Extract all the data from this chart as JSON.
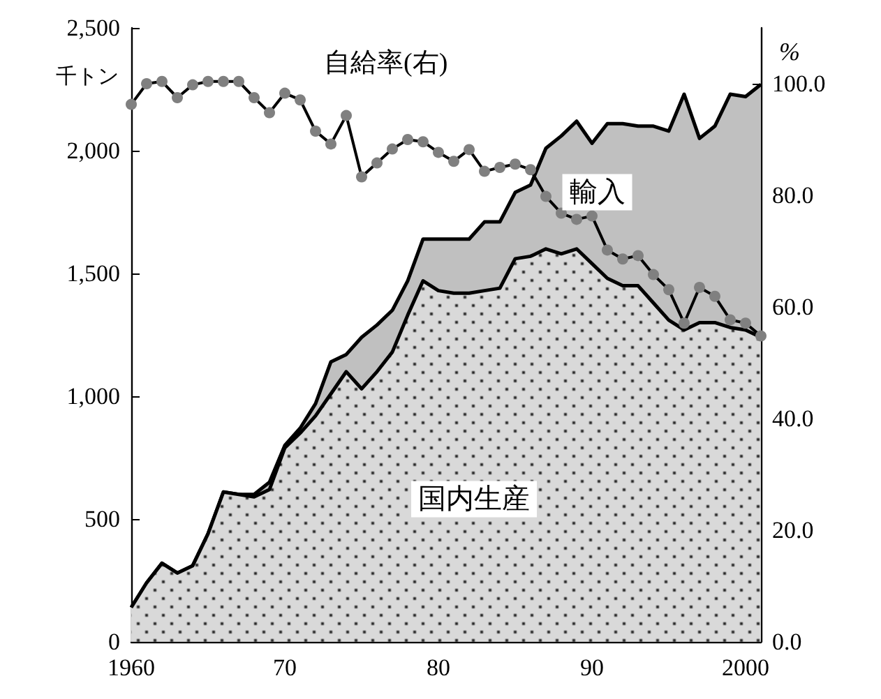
{
  "chart_data": {
    "type": "area",
    "stacked": true,
    "ylabel": "千トン",
    "y2label": "%",
    "annotations": [
      "自給率(右)"
    ],
    "x": [
      1960,
      1961,
      1962,
      1963,
      1964,
      1965,
      1966,
      1967,
      1968,
      1969,
      1970,
      1971,
      1972,
      1973,
      1974,
      1975,
      1976,
      1977,
      1978,
      1979,
      1980,
      1981,
      1982,
      1983,
      1984,
      1985,
      1986,
      1987,
      1988,
      1989,
      1990,
      1991,
      1992,
      1993,
      1994,
      1995,
      1996,
      1997,
      1998,
      1999,
      2000,
      2001
    ],
    "series": [
      {
        "name": "国内生産",
        "color": "#d9d9d9",
        "values": [
          140,
          240,
          320,
          280,
          310,
          440,
          610,
          600,
          590,
          620,
          790,
          850,
          920,
          1010,
          1100,
          1030,
          1100,
          1180,
          1330,
          1470,
          1430,
          1420,
          1420,
          1430,
          1440,
          1560,
          1570,
          1600,
          1580,
          1600,
          1540,
          1480,
          1450,
          1450,
          1380,
          1310,
          1270,
          1300,
          1300,
          1280,
          1270,
          1240
        ]
      },
      {
        "name": "輸入",
        "color": "#c0c0c0",
        "values": [
          0,
          0,
          0,
          0,
          0,
          0,
          0,
          0,
          10,
          30,
          10,
          20,
          50,
          130,
          70,
          210,
          190,
          170,
          140,
          170,
          210,
          220,
          220,
          280,
          270,
          270,
          290,
          410,
          480,
          520,
          490,
          630,
          660,
          650,
          720,
          770,
          960,
          750,
          800,
          950,
          950,
          1030
        ]
      },
      {
        "type": "line",
        "axis": "y2",
        "color": "#808080",
        "marker": "circle",
        "values": [
          96.3,
          100,
          100.4,
          97.5,
          99.8,
          100.4,
          100.4,
          100.4,
          97.5,
          94.8,
          98.3,
          97.1,
          91.5,
          89.2,
          94.3,
          83.3,
          85.8,
          88.3,
          90,
          89.6,
          87.7,
          86.1,
          88.2,
          84.3,
          85,
          85.6,
          84.6,
          79.8,
          76.8,
          75.7,
          76.3,
          70.2,
          68.6,
          69.2,
          65.8,
          63.1,
          57.1,
          63.5,
          61.9,
          57.7,
          57.1,
          54.8
        ]
      }
    ],
    "xlim": [
      1960,
      2001
    ],
    "xticks": [
      {
        "value": 1960,
        "label": "1960"
      },
      {
        "value": 1970,
        "label": "70"
      },
      {
        "value": 1980,
        "label": "80"
      },
      {
        "value": 1990,
        "label": "90"
      },
      {
        "value": 2000,
        "label": "2000"
      }
    ],
    "ylim": [
      0,
      2500
    ],
    "yticks": [
      0,
      500,
      {
        "value": 1000,
        "label": "1,000"
      },
      {
        "value": 1500,
        "label": "1,500"
      },
      {
        "value": 2000,
        "label": "2,000"
      },
      {
        "value": 2500,
        "label": "2,500"
      }
    ],
    "y2lim": [
      0,
      110
    ],
    "y2ticks": [
      {
        "value": 0,
        "label": "0.0"
      },
      {
        "value": 20,
        "label": "20.0"
      },
      {
        "value": 40,
        "label": "40.0"
      },
      {
        "value": 60,
        "label": "60.0"
      },
      {
        "value": 80,
        "label": "80.0"
      },
      {
        "value": 100,
        "label": "100.0"
      }
    ],
    "legend": false,
    "grid": false
  }
}
